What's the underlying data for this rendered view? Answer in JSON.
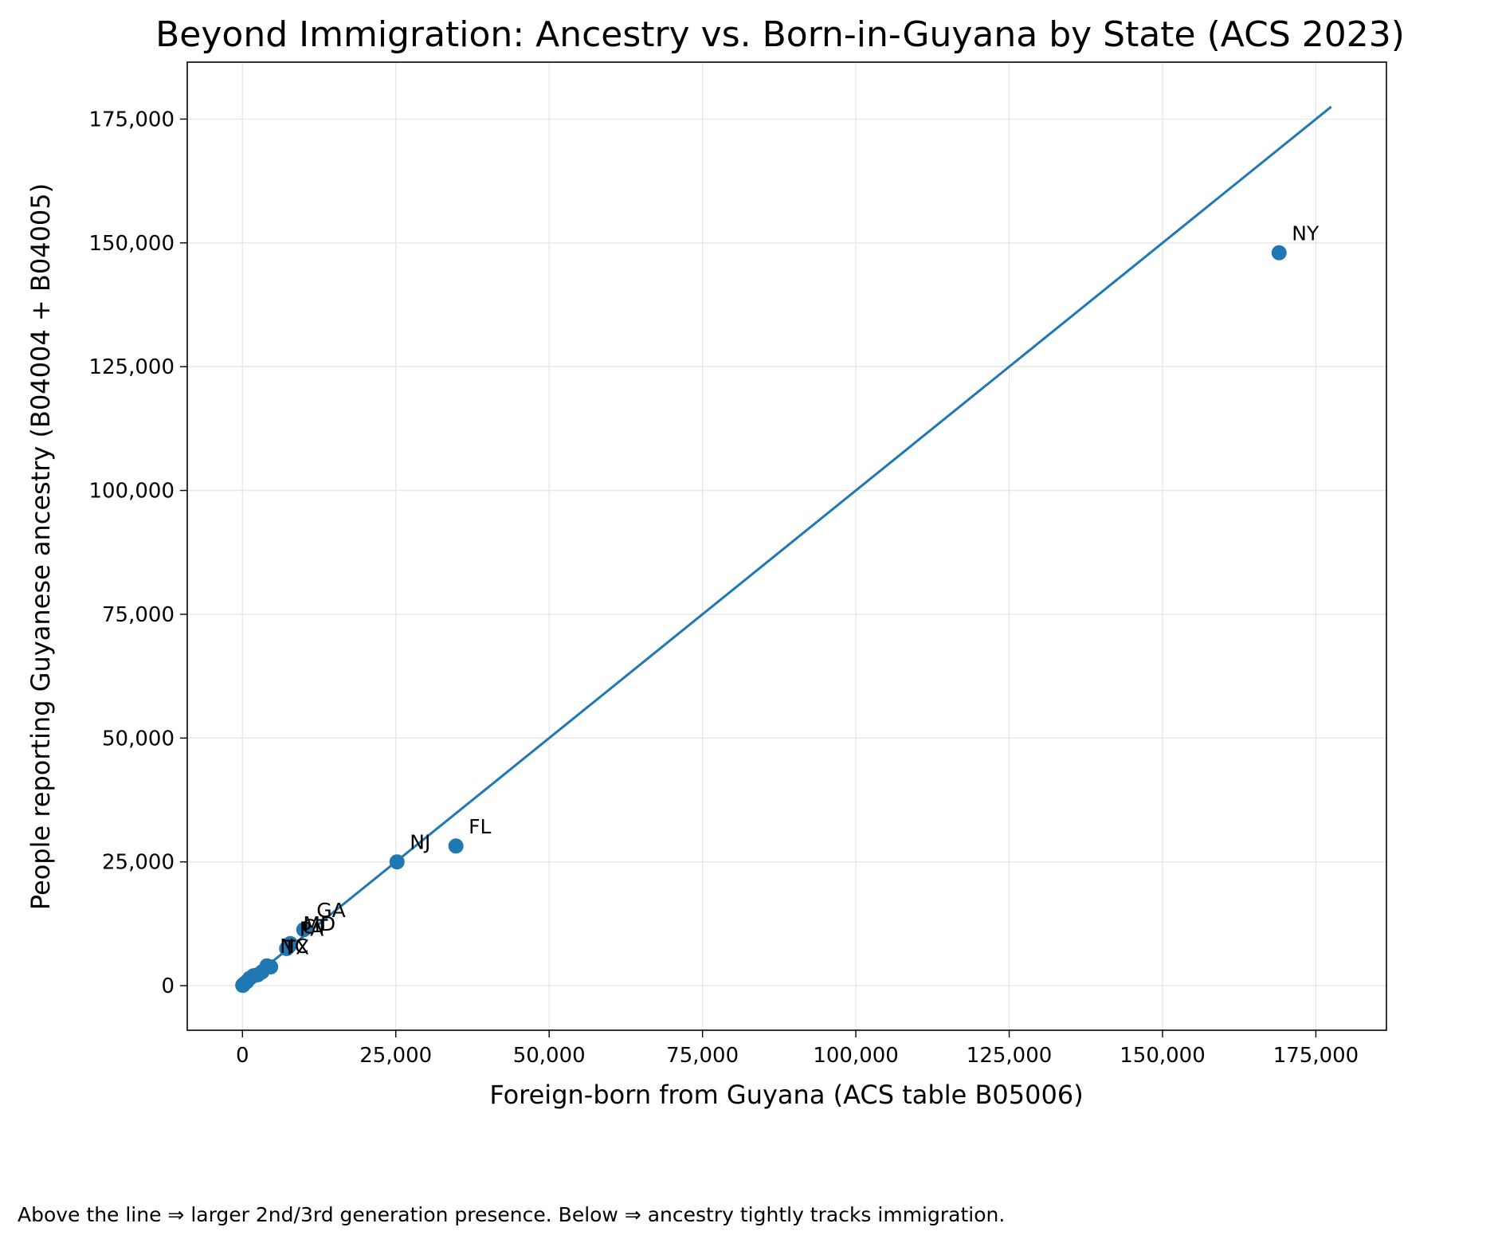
{
  "caption": "Above the line ⇒ larger 2nd/3rd generation presence. Below ⇒ ancestry tightly tracks immigration.",
  "chart_data": {
    "type": "scatter",
    "title": "Beyond Immigration: Ancestry vs. Born-in-Guyana by State (ACS 2023)",
    "xlabel": "Foreign-born from Guyana (ACS table B05006)",
    "ylabel": "People reporting Guyanese ancestry (B04004 + B04005)",
    "xlim": [
      -9000,
      186500
    ],
    "ylim": [
      -9000,
      186500
    ],
    "xticks": [
      0,
      25000,
      50000,
      75000,
      100000,
      125000,
      150000,
      175000
    ],
    "yticks": [
      0,
      25000,
      50000,
      75000,
      100000,
      125000,
      150000,
      175000
    ],
    "xtick_labels": [
      "0",
      "25,000",
      "50,000",
      "75,000",
      "100,000",
      "125,000",
      "150,000",
      "175,000"
    ],
    "ytick_labels": [
      "0",
      "25,000",
      "50,000",
      "75,000",
      "100,000",
      "125,000",
      "150,000",
      "175,000"
    ],
    "grid": true,
    "reference_line": {
      "x": [
        0,
        177500
      ],
      "y": [
        0,
        177500
      ]
    },
    "colors": {
      "points": "#1f77b4",
      "line": "#1f77b4",
      "grid": "#e6e6e6"
    },
    "points": [
      {
        "label": "NY",
        "x": 169000,
        "y": 148000
      },
      {
        "label": "FL",
        "x": 34800,
        "y": 28200
      },
      {
        "label": "NJ",
        "x": 25200,
        "y": 25000
      },
      {
        "label": "GA",
        "x": 10000,
        "y": 11300
      },
      {
        "label": "MD",
        "x": 7800,
        "y": 8500
      },
      {
        "label": "PA",
        "x": 7200,
        "y": 7500
      },
      {
        "label": "CT",
        "x": 7600,
        "y": 8000
      },
      {
        "label": "TX",
        "x": 4600,
        "y": 3800
      },
      {
        "label": "NC",
        "x": 4000,
        "y": 4000
      },
      {
        "label": "",
        "x": 3200,
        "y": 2800
      },
      {
        "label": "",
        "x": 2500,
        "y": 2200
      },
      {
        "label": "",
        "x": 1800,
        "y": 2000
      },
      {
        "label": "",
        "x": 1200,
        "y": 1500
      },
      {
        "label": "",
        "x": 700,
        "y": 800
      },
      {
        "label": "",
        "x": 300,
        "y": 400
      },
      {
        "label": "",
        "x": 100,
        "y": 150
      },
      {
        "label": "",
        "x": 50,
        "y": 50
      }
    ]
  }
}
